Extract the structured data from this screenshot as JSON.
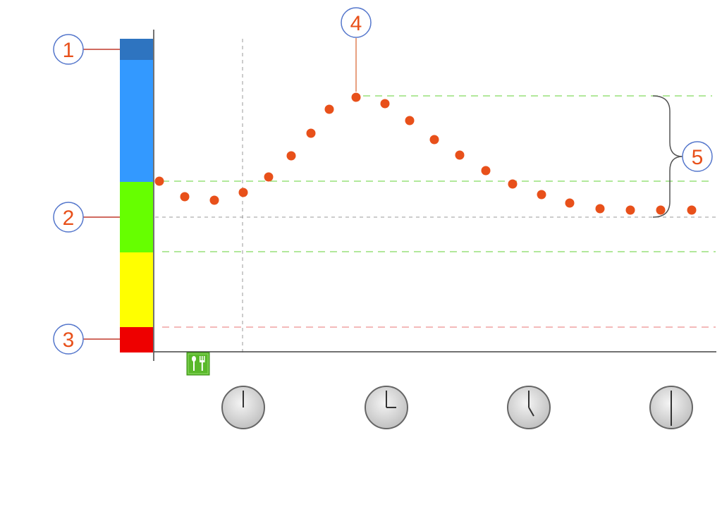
{
  "colors": {
    "band_dark_blue": "#2e74c0",
    "band_blue": "#3399ff",
    "band_green": "#66ff00",
    "band_yellow": "#ffff00",
    "band_red": "#ee0000",
    "dots": "#e8501a",
    "callout_stroke": "#5577cc",
    "callout_text": "#e8501a",
    "guide_green": "#99e07a",
    "guide_red": "#f0a3a3",
    "guide_gray": "#999999"
  },
  "callouts": [
    {
      "id": "1",
      "label": "1"
    },
    {
      "id": "2",
      "label": "2"
    },
    {
      "id": "3",
      "label": "3"
    },
    {
      "id": "4",
      "label": "4"
    },
    {
      "id": "5",
      "label": "5"
    }
  ],
  "icons": {
    "meal": "meal-icon",
    "clocks": [
      {
        "name": "clock-12-icon",
        "hour_angle_deg": 0
      },
      {
        "name": "clock-3-icon",
        "hour_angle_deg": 90
      },
      {
        "name": "clock-5-icon",
        "hour_angle_deg": 150
      },
      {
        "name": "clock-6-icon",
        "hour_angle_deg": 180
      }
    ]
  }
}
